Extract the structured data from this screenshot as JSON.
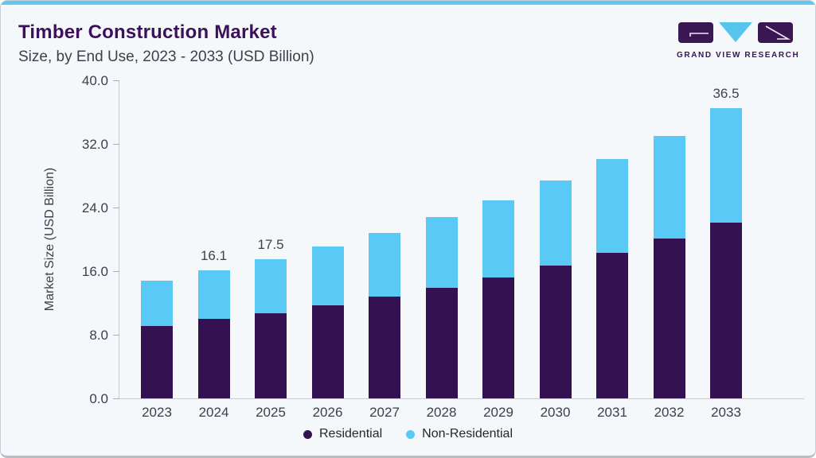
{
  "page": {
    "title": "Timber Construction Market",
    "subtitle": "Size, by End Use, 2023 - 2033 (USD Billion)"
  },
  "branding": {
    "logo_text": "GRAND VIEW RESEARCH"
  },
  "colors": {
    "background": "#f4f8fb",
    "top_accent": "#5fc8f1",
    "title_purple": "#3c1159",
    "text_gray": "#3b4049",
    "axis_gray": "#c6cbd2",
    "residential": "#341151",
    "non_residential": "#5bc9f5",
    "logo_purple": "#3a1653",
    "logo_blue": "#56c5ee"
  },
  "chart_data": {
    "type": "bar",
    "stacked": true,
    "title": "Timber Construction Market Size, by End Use, 2023 - 2033 (USD Billion)",
    "categories": [
      "2023",
      "2024",
      "2025",
      "2026",
      "2027",
      "2028",
      "2029",
      "2030",
      "2031",
      "2032",
      "2033"
    ],
    "series": [
      {
        "name": "Residential",
        "color": "#341151",
        "values": [
          9.1,
          10.0,
          10.7,
          11.7,
          12.8,
          13.9,
          15.2,
          16.7,
          18.3,
          20.1,
          22.1
        ]
      },
      {
        "name": "Non-Residential",
        "color": "#5bc9f5",
        "values": [
          5.7,
          6.1,
          6.8,
          7.4,
          8.0,
          8.9,
          9.7,
          10.7,
          11.8,
          12.9,
          14.4
        ]
      }
    ],
    "totals": [
      14.8,
      16.1,
      17.5,
      19.1,
      20.8,
      22.8,
      24.9,
      27.4,
      30.1,
      33.0,
      36.5
    ],
    "total_labels": {
      "2024": "16.1",
      "2025": "17.5",
      "2033": "36.5"
    },
    "ylabel": "Market Size (USD Billion)",
    "yticks": [
      "0.0",
      "8.0",
      "16.0",
      "24.0",
      "32.0",
      "40.0"
    ],
    "ylim": [
      0,
      40
    ],
    "grid": false,
    "legend": [
      "Residential",
      "Non-Residential"
    ],
    "legend_position": "bottom"
  }
}
